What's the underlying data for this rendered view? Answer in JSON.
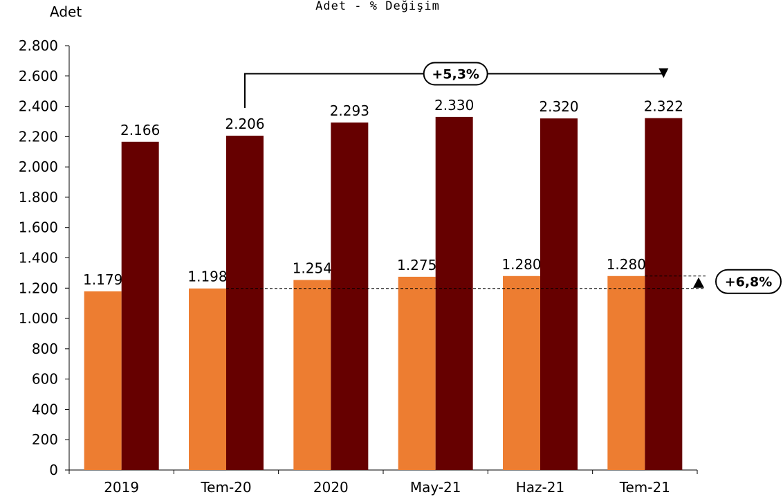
{
  "chart_data": {
    "type": "bar",
    "title": "Adet - % Değişim",
    "ylabel": "Adet",
    "xlabel": "",
    "categories": [
      "2019",
      "Tem-20",
      "2020",
      "May-21",
      "Haz-21",
      "Tem-21"
    ],
    "series": [
      {
        "values": [
          1179,
          1198,
          1254,
          1275,
          1280,
          1280
        ],
        "color": "#ED7D31"
      },
      {
        "values": [
          2166,
          2206,
          2293,
          2330,
          2320,
          2322
        ],
        "color": "#660000"
      }
    ],
    "value_labels": [
      [
        "1.179",
        "1.198",
        "1.254",
        "1.275",
        "1.280",
        "1.280"
      ],
      [
        "2.166",
        "2.206",
        "2.293",
        "2.330",
        "2.320",
        "2.322"
      ]
    ],
    "ylim": [
      0,
      2800
    ],
    "yticks": [
      0,
      200,
      400,
      600,
      800,
      1000,
      1200,
      1400,
      1600,
      1800,
      2000,
      2200,
      2400,
      2600,
      2800
    ],
    "ytick_labels": [
      "0",
      "200",
      "400",
      "600",
      "800",
      "1.000",
      "1.200",
      "1.400",
      "1.600",
      "1.800",
      "2.000",
      "2.200",
      "2.400",
      "2.600",
      "2.800"
    ],
    "grid": false,
    "annotations": [
      {
        "text": "+5,3%",
        "from_category": "Tem-20",
        "to_category": "Tem-21",
        "series": 1
      },
      {
        "text": "+6,8%",
        "from_category": "Tem-20",
        "to_category": "Tem-21",
        "series": 0
      }
    ]
  }
}
